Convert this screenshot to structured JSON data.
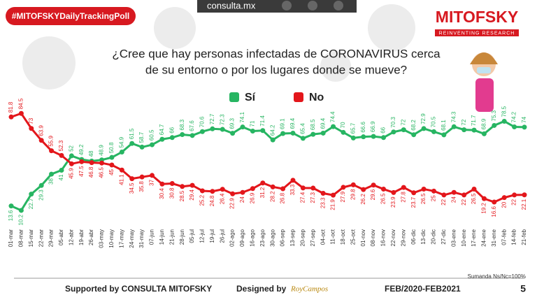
{
  "header": {
    "hashtag": "#MITOFSKYDailyTrackingPoll",
    "site": "consulta.mx",
    "brand": "MITOFSKY",
    "tagline": "REINVENTING RESEARCH"
  },
  "chart_data": {
    "type": "line",
    "title": "¿Cree que hay personas infectadas de CORONAVIRUS cerca",
    "subtitle": "de su entorno o por los lugares donde se mueve?",
    "categories": [
      "01-mar",
      "08-mar",
      "15-mar",
      "22-mar",
      "29-mar",
      "05-abr",
      "12-abr",
      "19-abr",
      "26-abr",
      "03-may",
      "10-may",
      "17-may",
      "24-may",
      "31-may",
      "07-jun",
      "14-jun",
      "21-jun",
      "28-jun",
      "05-jul",
      "12-jul",
      "19-jul",
      "26-jul",
      "02-ago",
      "09-ago",
      "16-ago",
      "23-ago",
      "30-ago",
      "06-sep",
      "13-sep",
      "20-sep",
      "27-sep",
      "04-oct",
      "11-oct",
      "18-oct",
      "25-oct",
      "01-nov",
      "08-nov",
      "16-nov",
      "22-nov",
      "29-nov",
      "06-dic",
      "13-dic",
      "20-dic",
      "27-dic",
      "03-ene",
      "10-ene",
      "17-ene",
      "24-ene",
      "31-ene",
      "07-feb",
      "14-feb",
      "21-feb"
    ],
    "series": [
      {
        "name": "Sí",
        "color": "#27b562",
        "values": [
          13.6,
          10.2,
          22.7,
          29.3,
          38.0,
          41.0,
          52.0,
          49.2,
          48.0,
          48.9,
          50.8,
          54.9,
          61.5,
          58.7,
          60.5,
          64.7,
          66.0,
          68.3,
          67.6,
          70.6,
          72.7,
          72.3,
          69.3,
          74.1,
          71.0,
          71.4,
          64.2,
          69.1,
          69.4,
          65.4,
          68.5,
          69.4,
          74.4,
          70.0,
          65.7,
          66.6,
          66.9,
          66.0,
          70.3,
          72.0,
          68.2,
          72.9,
          70.5,
          68.1,
          74.3,
          72.0,
          71.7,
          68.9,
          75.3,
          78.5,
          74.2,
          74.0
        ]
      },
      {
        "name": "No",
        "color": "#e3161b",
        "values": [
          81.8,
          84.5,
          73.0,
          63.9,
          55.9,
          52.3,
          45.9,
          47.5,
          46.8,
          46.5,
          45.0,
          41.1,
          34.5,
          35.8,
          37.0,
          30.4,
          30.8,
          28.5,
          29.4,
          25.2,
          24.8,
          26.4,
          22.9,
          24.0,
          26.9,
          31.2,
          28.2,
          26.8,
          33.3,
          27.4,
          27.3,
          23.3,
          21.9,
          27.9,
          29.8,
          26.2,
          29.6,
          26.5,
          23.9,
          27.8,
          23.7,
          26.5,
          25.0,
          22.0,
          24.0,
          22.0,
          26.5,
          19.2,
          16.6,
          20.0,
          22.0,
          22.1
        ]
      }
    ],
    "ylim": [
      0,
      90
    ]
  },
  "footer": {
    "supported": "Supported by  CONSULTA  MITOFSKY",
    "designed": "Designed by",
    "designer": "RoyCampos",
    "period": "FEB/2020-FEB2021",
    "note": "Sumanda Ns/Nc=100%",
    "page": "5"
  }
}
